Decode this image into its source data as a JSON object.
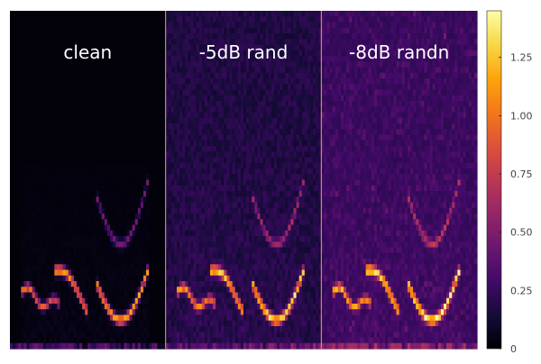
{
  "chart_data": {
    "type": "heatmap",
    "colormap": "inferno",
    "panels": [
      {
        "label": "clean",
        "noise": "none"
      },
      {
        "label": "-5dB rand",
        "noise": "uniform"
      },
      {
        "label": "-8dB randn",
        "noise": "gaussian"
      }
    ],
    "colorbar": {
      "range": [
        0,
        1.45
      ],
      "ticks": [
        0,
        0.25,
        0.5,
        0.75,
        1.0,
        1.25
      ],
      "tick_labels": [
        "0",
        "0.25",
        "0.50",
        "0.75",
        "1.00",
        "1.25"
      ]
    },
    "divider_color": "#f3a25c",
    "grid": false,
    "legend": "none"
  }
}
